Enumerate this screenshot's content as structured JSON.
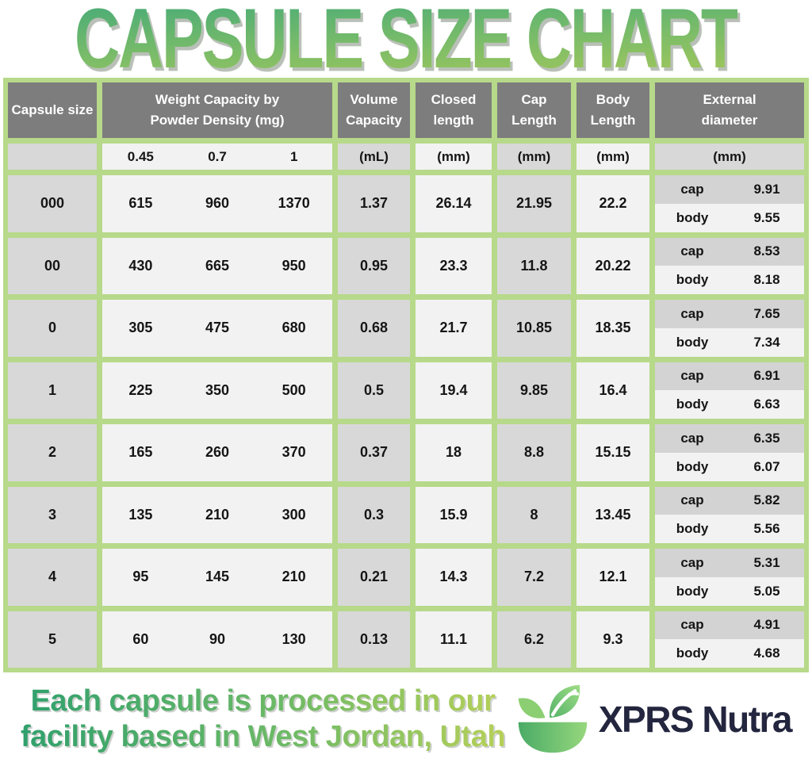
{
  "title": "CAPSULE SIZE CHART",
  "colors": {
    "border_green": "#b7d98a",
    "header_gray": "#7d7d7d",
    "cell_gray": "#d8d8d8",
    "cell_light": "#f2f2f2",
    "title_gradient_top": "#3fa87a",
    "title_gradient_bottom": "#a9c958",
    "brand_navy": "#23263e",
    "logo_green_dark": "#4aab66",
    "logo_green_light": "#96d77d"
  },
  "table": {
    "headers": {
      "capsule_size": "Capsule size",
      "weight": "Weight Capacity by\nPowder Density (mg)",
      "volume": "Volume\nCapacity",
      "closed": "Closed\nlength",
      "cap": "Cap\nLength",
      "body": "Body\nLength",
      "external": "External\ndiameter"
    },
    "units": {
      "weight": [
        "0.45",
        "0.7",
        "1"
      ],
      "volume": "(mL)",
      "closed": "(mm)",
      "cap": "(mm)",
      "body": "(mm)",
      "external": "(mm)"
    },
    "ext_labels": {
      "cap": "cap",
      "body": "body"
    },
    "rows": [
      {
        "size": "000",
        "weights": [
          "615",
          "960",
          "1370"
        ],
        "volume": "1.37",
        "closed": "26.14",
        "cap_length": "21.95",
        "body_length": "22.2",
        "ext_cap": "9.91",
        "ext_body": "9.55"
      },
      {
        "size": "00",
        "weights": [
          "430",
          "665",
          "950"
        ],
        "volume": "0.95",
        "closed": "23.3",
        "cap_length": "11.8",
        "body_length": "20.22",
        "ext_cap": "8.53",
        "ext_body": "8.18"
      },
      {
        "size": "0",
        "weights": [
          "305",
          "475",
          "680"
        ],
        "volume": "0.68",
        "closed": "21.7",
        "cap_length": "10.85",
        "body_length": "18.35",
        "ext_cap": "7.65",
        "ext_body": "7.34"
      },
      {
        "size": "1",
        "weights": [
          "225",
          "350",
          "500"
        ],
        "volume": "0.5",
        "closed": "19.4",
        "cap_length": "9.85",
        "body_length": "16.4",
        "ext_cap": "6.91",
        "ext_body": "6.63"
      },
      {
        "size": "2",
        "weights": [
          "165",
          "260",
          "370"
        ],
        "volume": "0.37",
        "closed": "18",
        "cap_length": "8.8",
        "body_length": "15.15",
        "ext_cap": "6.35",
        "ext_body": "6.07"
      },
      {
        "size": "3",
        "weights": [
          "135",
          "210",
          "300"
        ],
        "volume": "0.3",
        "closed": "15.9",
        "cap_length": "8",
        "body_length": "13.45",
        "ext_cap": "5.82",
        "ext_body": "5.56"
      },
      {
        "size": "4",
        "weights": [
          "95",
          "145",
          "210"
        ],
        "volume": "0.21",
        "closed": "14.3",
        "cap_length": "7.2",
        "body_length": "12.1",
        "ext_cap": "5.31",
        "ext_body": "5.05"
      },
      {
        "size": "5",
        "weights": [
          "60",
          "90",
          "130"
        ],
        "volume": "0.13",
        "closed": "11.1",
        "cap_length": "6.2",
        "body_length": "9.3",
        "ext_cap": "4.91",
        "ext_body": "4.68"
      }
    ]
  },
  "footer": {
    "line1": "Each capsule is processed in our",
    "line2": "facility based in West Jordan, Utah",
    "brand": "XPRS Nutra"
  },
  "chart_data": {
    "type": "table",
    "title": "CAPSULE SIZE CHART",
    "columns": [
      "Capsule size",
      "Weight Capacity @ 0.45 Powder Density (mg)",
      "Weight Capacity @ 0.7 Powder Density (mg)",
      "Weight Capacity @ 1 Powder Density (mg)",
      "Volume Capacity (mL)",
      "Closed length (mm)",
      "Cap Length (mm)",
      "Body Length (mm)",
      "External diameter cap (mm)",
      "External diameter body (mm)"
    ],
    "rows": [
      [
        "000",
        615,
        960,
        1370,
        1.37,
        26.14,
        21.95,
        22.2,
        9.91,
        9.55
      ],
      [
        "00",
        430,
        665,
        950,
        0.95,
        23.3,
        11.8,
        20.22,
        8.53,
        8.18
      ],
      [
        "0",
        305,
        475,
        680,
        0.68,
        21.7,
        10.85,
        18.35,
        7.65,
        7.34
      ],
      [
        "1",
        225,
        350,
        500,
        0.5,
        19.4,
        9.85,
        16.4,
        6.91,
        6.63
      ],
      [
        "2",
        165,
        260,
        370,
        0.37,
        18,
        8.8,
        15.15,
        6.35,
        6.07
      ],
      [
        "3",
        135,
        210,
        300,
        0.3,
        15.9,
        8,
        13.45,
        5.82,
        5.56
      ],
      [
        "4",
        95,
        145,
        210,
        0.21,
        14.3,
        7.2,
        12.1,
        5.31,
        5.05
      ],
      [
        "5",
        60,
        90,
        130,
        0.13,
        11.1,
        6.2,
        9.3,
        4.91,
        4.68
      ]
    ]
  }
}
